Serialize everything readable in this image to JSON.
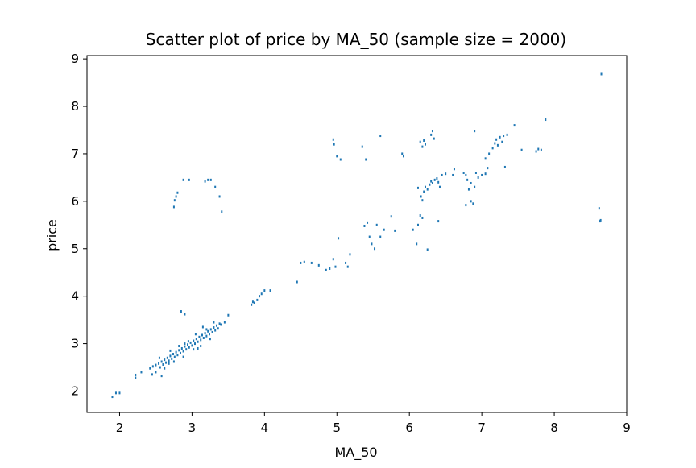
{
  "chart_data": {
    "type": "scatter",
    "title": "Scatter plot of price by MA_50 (sample size = 2000)",
    "xlabel": "MA_50",
    "ylabel": "price",
    "xlim": [
      1.55,
      9.0
    ],
    "ylim": [
      1.55,
      9.07
    ],
    "xticks": [
      2,
      3,
      4,
      5,
      6,
      7,
      8,
      9
    ],
    "yticks": [
      2,
      3,
      4,
      5,
      6,
      7,
      8,
      9
    ],
    "grid": false,
    "marker_color": "#1f77b4",
    "series": [
      {
        "points": [
          [
            1.9,
            1.88
          ],
          [
            1.95,
            1.96
          ],
          [
            2.0,
            1.96
          ],
          [
            2.22,
            2.28
          ],
          [
            2.22,
            2.34
          ],
          [
            2.3,
            2.4
          ],
          [
            2.42,
            2.48
          ],
          [
            2.46,
            2.52
          ],
          [
            2.5,
            2.55
          ],
          [
            2.54,
            2.58
          ],
          [
            2.56,
            2.5
          ],
          [
            2.58,
            2.62
          ],
          [
            2.6,
            2.56
          ],
          [
            2.62,
            2.66
          ],
          [
            2.64,
            2.6
          ],
          [
            2.66,
            2.7
          ],
          [
            2.68,
            2.64
          ],
          [
            2.7,
            2.74
          ],
          [
            2.72,
            2.68
          ],
          [
            2.74,
            2.78
          ],
          [
            2.76,
            2.72
          ],
          [
            2.78,
            2.82
          ],
          [
            2.8,
            2.76
          ],
          [
            2.82,
            2.86
          ],
          [
            2.84,
            2.8
          ],
          [
            2.86,
            2.9
          ],
          [
            2.88,
            2.84
          ],
          [
            2.9,
            2.94
          ],
          [
            2.92,
            2.88
          ],
          [
            2.94,
            2.98
          ],
          [
            2.96,
            2.92
          ],
          [
            2.98,
            3.02
          ],
          [
            3.0,
            2.96
          ],
          [
            3.02,
            3.06
          ],
          [
            3.04,
            3.0
          ],
          [
            3.06,
            3.1
          ],
          [
            3.08,
            3.04
          ],
          [
            3.1,
            3.14
          ],
          [
            3.12,
            3.08
          ],
          [
            3.14,
            3.18
          ],
          [
            3.16,
            3.12
          ],
          [
            3.18,
            3.22
          ],
          [
            3.2,
            3.16
          ],
          [
            3.22,
            3.26
          ],
          [
            3.24,
            3.2
          ],
          [
            3.26,
            3.3
          ],
          [
            3.28,
            3.24
          ],
          [
            3.3,
            3.34
          ],
          [
            3.32,
            3.28
          ],
          [
            3.34,
            3.38
          ],
          [
            3.36,
            3.32
          ],
          [
            3.38,
            3.42
          ],
          [
            3.4,
            3.4
          ],
          [
            3.45,
            3.45
          ],
          [
            2.55,
            2.7
          ],
          [
            2.62,
            2.48
          ],
          [
            2.68,
            2.58
          ],
          [
            2.75,
            2.62
          ],
          [
            2.82,
            2.95
          ],
          [
            2.88,
            2.72
          ],
          [
            2.95,
            3.05
          ],
          [
            3.02,
            2.88
          ],
          [
            3.08,
            2.9
          ],
          [
            3.12,
            2.95
          ],
          [
            3.2,
            3.3
          ],
          [
            3.25,
            3.1
          ],
          [
            2.5,
            2.4
          ],
          [
            2.45,
            2.35
          ],
          [
            2.58,
            2.32
          ],
          [
            2.7,
            2.85
          ],
          [
            2.9,
            3.0
          ],
          [
            3.05,
            3.2
          ],
          [
            3.15,
            3.35
          ],
          [
            3.3,
            3.45
          ],
          [
            2.85,
            3.68
          ],
          [
            2.9,
            3.62
          ],
          [
            3.5,
            3.6
          ],
          [
            2.75,
            5.88
          ],
          [
            2.76,
            6.02
          ],
          [
            2.78,
            6.1
          ],
          [
            2.8,
            6.18
          ],
          [
            2.88,
            6.45
          ],
          [
            2.96,
            6.45
          ],
          [
            3.18,
            6.42
          ],
          [
            3.22,
            6.45
          ],
          [
            3.26,
            6.45
          ],
          [
            3.32,
            6.3
          ],
          [
            3.38,
            6.1
          ],
          [
            3.41,
            5.78
          ],
          [
            3.82,
            3.82
          ],
          [
            3.84,
            3.88
          ],
          [
            3.86,
            3.86
          ],
          [
            3.9,
            3.92
          ],
          [
            3.93,
            4.0
          ],
          [
            3.96,
            4.05
          ],
          [
            4.0,
            4.12
          ],
          [
            4.08,
            4.12
          ],
          [
            4.45,
            4.3
          ],
          [
            4.5,
            4.7
          ],
          [
            4.55,
            4.72
          ],
          [
            4.65,
            4.7
          ],
          [
            4.75,
            4.65
          ],
          [
            4.85,
            4.55
          ],
          [
            4.9,
            4.58
          ],
          [
            4.95,
            4.78
          ],
          [
            4.98,
            4.62
          ],
          [
            5.02,
            5.22
          ],
          [
            5.12,
            4.7
          ],
          [
            5.15,
            4.62
          ],
          [
            5.18,
            4.88
          ],
          [
            4.95,
            7.3
          ],
          [
            4.96,
            7.2
          ],
          [
            5.0,
            6.95
          ],
          [
            5.05,
            6.88
          ],
          [
            5.35,
            7.15
          ],
          [
            5.4,
            6.88
          ],
          [
            5.6,
            7.38
          ],
          [
            5.38,
            5.48
          ],
          [
            5.42,
            5.55
          ],
          [
            5.45,
            5.25
          ],
          [
            5.48,
            5.1
          ],
          [
            5.52,
            5.0
          ],
          [
            5.55,
            5.5
          ],
          [
            5.6,
            5.25
          ],
          [
            5.65,
            5.4
          ],
          [
            5.75,
            5.68
          ],
          [
            5.8,
            5.38
          ],
          [
            5.9,
            7.0
          ],
          [
            5.92,
            6.95
          ],
          [
            6.05,
            5.4
          ],
          [
            6.1,
            5.1
          ],
          [
            6.12,
            5.5
          ],
          [
            6.15,
            5.7
          ],
          [
            6.18,
            5.65
          ],
          [
            6.12,
            6.28
          ],
          [
            6.16,
            6.1
          ],
          [
            6.18,
            6.02
          ],
          [
            6.2,
            6.2
          ],
          [
            6.22,
            6.3
          ],
          [
            6.25,
            6.25
          ],
          [
            6.28,
            6.35
          ],
          [
            6.3,
            6.42
          ],
          [
            6.32,
            6.38
          ],
          [
            6.35,
            6.45
          ],
          [
            6.38,
            6.48
          ],
          [
            6.4,
            6.4
          ],
          [
            6.42,
            6.3
          ],
          [
            6.45,
            6.55
          ],
          [
            6.5,
            6.58
          ],
          [
            6.15,
            7.25
          ],
          [
            6.18,
            7.15
          ],
          [
            6.2,
            7.28
          ],
          [
            6.22,
            7.2
          ],
          [
            6.3,
            7.4
          ],
          [
            6.32,
            7.48
          ],
          [
            6.34,
            7.32
          ],
          [
            6.4,
            5.58
          ],
          [
            6.25,
            4.98
          ],
          [
            6.6,
            6.55
          ],
          [
            6.62,
            6.68
          ],
          [
            6.75,
            6.6
          ],
          [
            6.78,
            6.55
          ],
          [
            6.8,
            6.45
          ],
          [
            6.85,
            6.38
          ],
          [
            6.78,
            5.92
          ],
          [
            6.82,
            6.25
          ],
          [
            6.85,
            6.0
          ],
          [
            6.88,
            5.95
          ],
          [
            6.9,
            6.3
          ],
          [
            6.95,
            6.5
          ],
          [
            7.0,
            6.55
          ],
          [
            7.05,
            6.58
          ],
          [
            7.08,
            6.7
          ],
          [
            6.92,
            6.6
          ],
          [
            6.9,
            7.48
          ],
          [
            7.05,
            6.9
          ],
          [
            7.1,
            7.0
          ],
          [
            7.15,
            7.12
          ],
          [
            7.18,
            7.22
          ],
          [
            7.2,
            7.3
          ],
          [
            7.22,
            7.18
          ],
          [
            7.25,
            7.35
          ],
          [
            7.28,
            7.25
          ],
          [
            7.3,
            7.38
          ],
          [
            7.35,
            7.4
          ],
          [
            7.32,
            6.72
          ],
          [
            7.45,
            7.6
          ],
          [
            7.55,
            7.08
          ],
          [
            7.75,
            7.05
          ],
          [
            7.78,
            7.1
          ],
          [
            7.82,
            7.08
          ],
          [
            7.88,
            7.72
          ],
          [
            8.65,
            8.68
          ],
          [
            8.62,
            5.85
          ],
          [
            8.63,
            5.58
          ],
          [
            8.64,
            5.6
          ]
        ]
      }
    ]
  }
}
